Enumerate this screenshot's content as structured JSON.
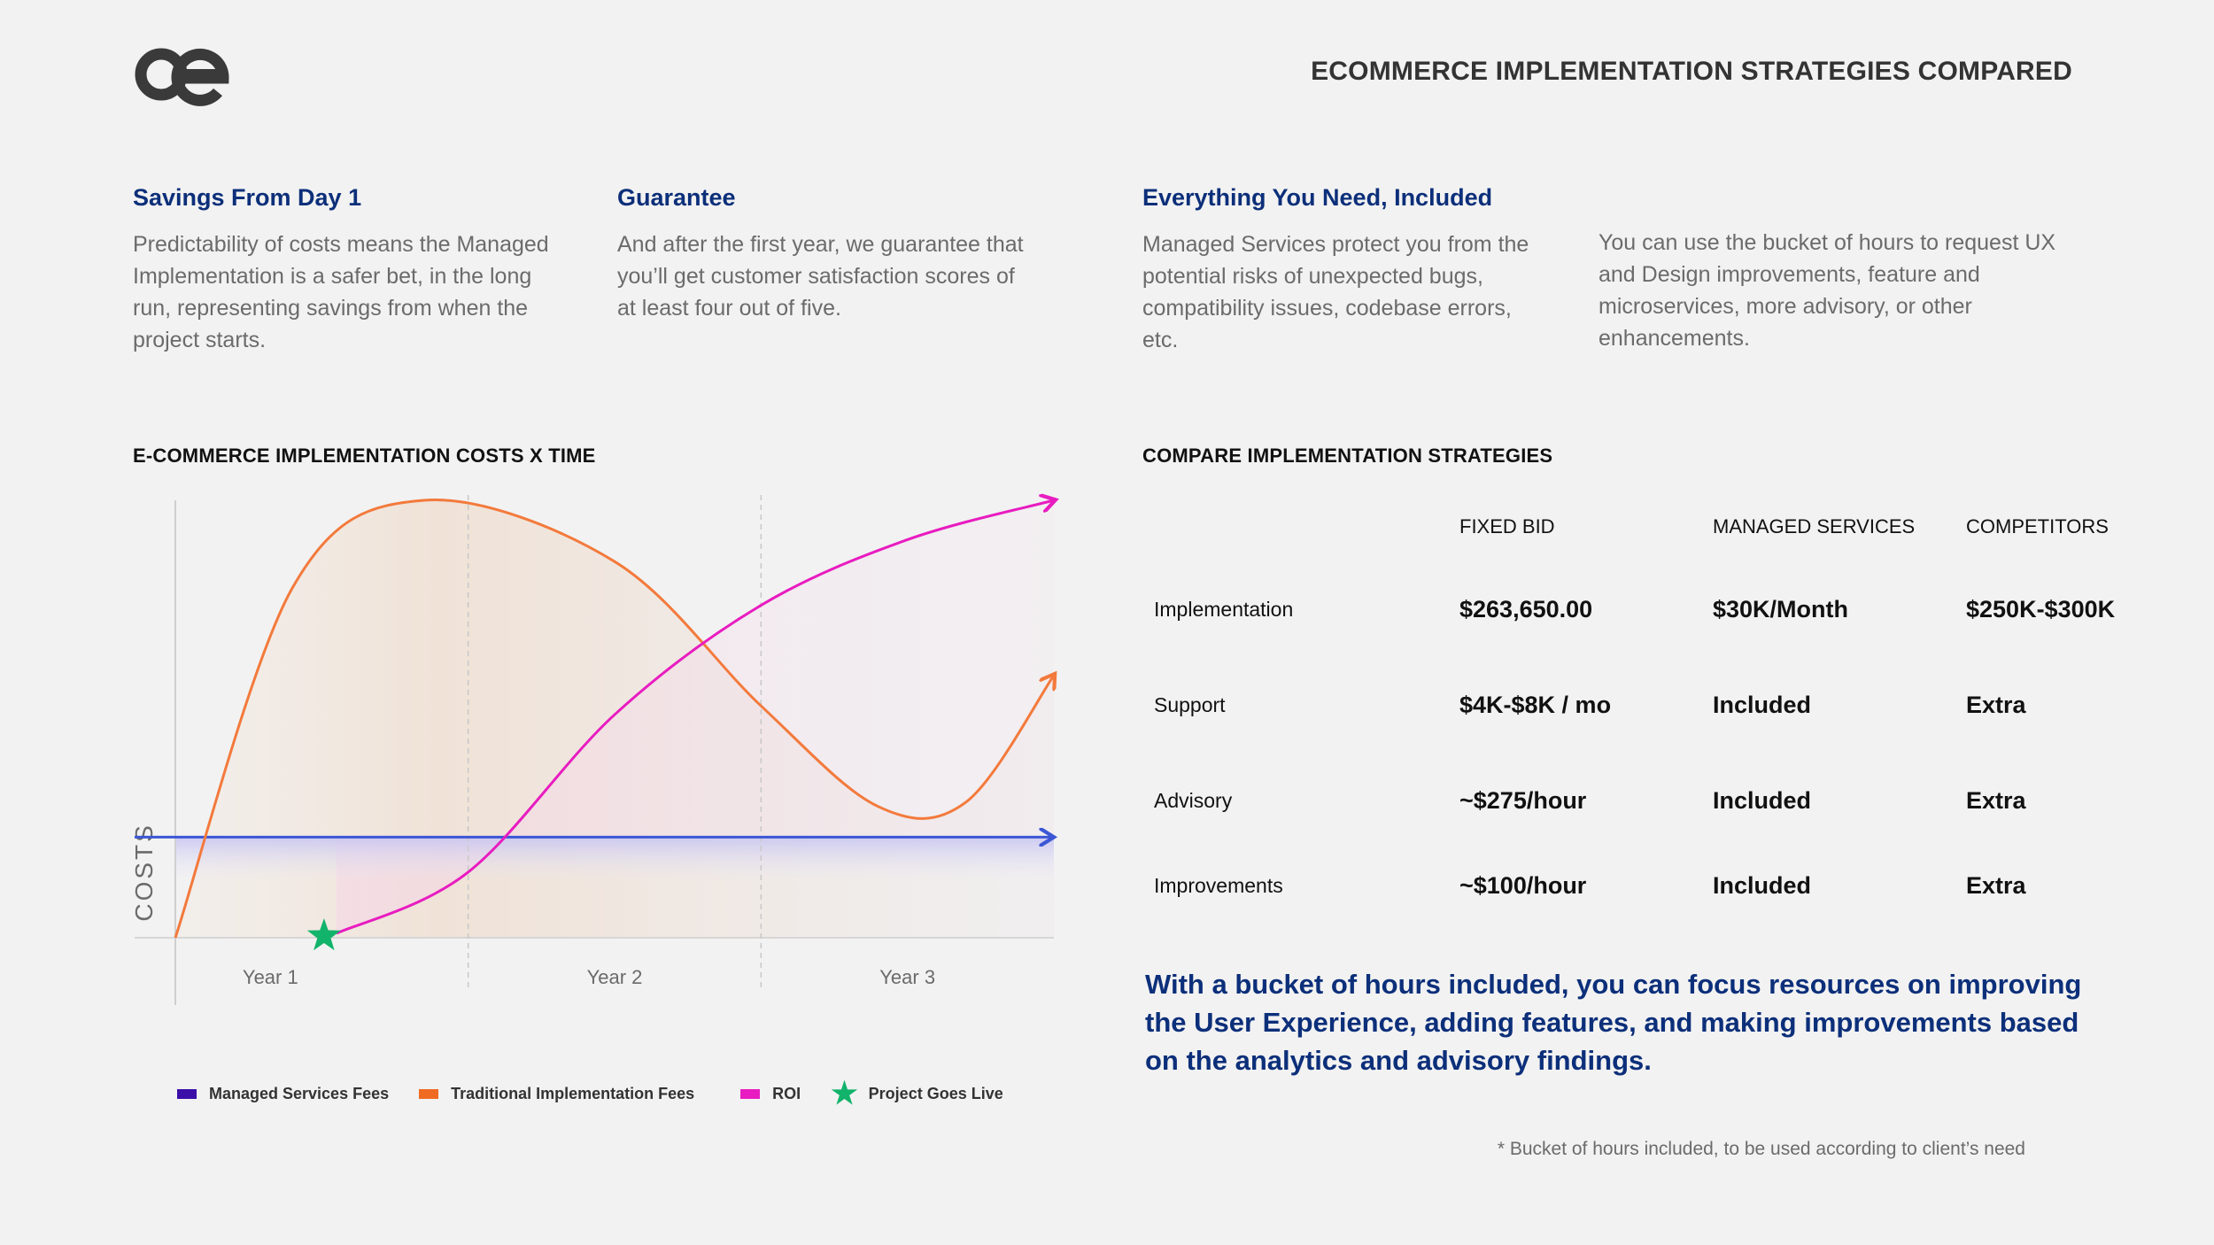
{
  "header": {
    "logo_text": "oe",
    "title": "ECOMMERCE IMPLEMENTATION STRATEGIES COMPARED"
  },
  "features": [
    {
      "title": "Savings From Day 1",
      "text": "Predictability of costs means the Managed Implementation is a safer bet, in the long run, representing savings from when the project starts."
    },
    {
      "title": "Guarantee",
      "text": "And after the first year, we guarantee that you’ll get customer satisfaction scores of at least four out of five."
    },
    {
      "title": "Everything You Need, Included",
      "text": "Managed Services protect you from the potential risks of unexpected bugs, compatibility issues, codebase errors, etc."
    },
    {
      "title": "",
      "text": "You can use the bucket of hours to request UX and Design improvements, feature and microservices, more advisory, or other enhancements."
    }
  ],
  "chart_section": {
    "title": "E-COMMERCE IMPLEMENTATION COSTS X TIME"
  },
  "chart_data": {
    "type": "line",
    "title": "E-COMMERCE IMPLEMENTATION COSTS X TIME",
    "xlabel": "",
    "ylabel": "COSTS",
    "categories": [
      "Year 1",
      "Year 2",
      "Year 3"
    ],
    "xlim": [
      0,
      3
    ],
    "ylim": [
      0,
      10
    ],
    "grid": false,
    "legend_position": "bottom",
    "series": [
      {
        "name": "Managed Services Fees",
        "color": "#3b57d6",
        "x": [
          0,
          3
        ],
        "y": [
          2.3,
          2.3
        ]
      },
      {
        "name": "Traditional Implementation Fees",
        "color": "#f37a3c",
        "x": [
          0,
          0.4,
          0.85,
          1.5,
          2.0,
          2.4,
          2.7,
          3.0
        ],
        "y": [
          0,
          8,
          10,
          8.6,
          5.3,
          3.0,
          3.1,
          6.0
        ]
      },
      {
        "name": "ROI",
        "color": "#e81cc0",
        "x": [
          0.55,
          1.0,
          1.5,
          2.0,
          2.5,
          3.0
        ],
        "y": [
          0.1,
          1.5,
          5.1,
          7.6,
          9.1,
          10
        ]
      }
    ],
    "annotations": [
      {
        "label": "Project Goes Live",
        "x": 0.55,
        "y": 0,
        "icon": "star-icon",
        "color": "#12b36b"
      }
    ],
    "legend": [
      {
        "label": "Managed Services Fees",
        "color": "#3b0fa8"
      },
      {
        "label": "Traditional Implementation Fees",
        "color": "#f06a22"
      },
      {
        "label": "ROI",
        "color": "#e81cc0"
      },
      {
        "label": "Project Goes Live",
        "color": "#12b36b"
      }
    ]
  },
  "compare": {
    "title": "COMPARE IMPLEMENTATION STRATEGIES",
    "columns": [
      "FIXED BID",
      "MANAGED SERVICES",
      "COMPETITORS"
    ],
    "rows": [
      {
        "label": "Implementation",
        "values": [
          "$263,650.00",
          "$30K/Month",
          "$250K-$300K"
        ]
      },
      {
        "label": "Support",
        "values": [
          "$4K-$8K / mo",
          "Included",
          "Extra"
        ]
      },
      {
        "label": "Advisory",
        "values": [
          "~$275/hour",
          "Included",
          "Extra"
        ]
      },
      {
        "label": "Improvements",
        "values": [
          "~$100/hour",
          "Included",
          "Extra"
        ]
      }
    ]
  },
  "cta": "With a bucket of hours included, you can focus resources on improving the User Experience, adding features, and making improvements based on the analytics and advisory findings.",
  "footnote": "* Bucket of hours included, to be used according to client’s need"
}
